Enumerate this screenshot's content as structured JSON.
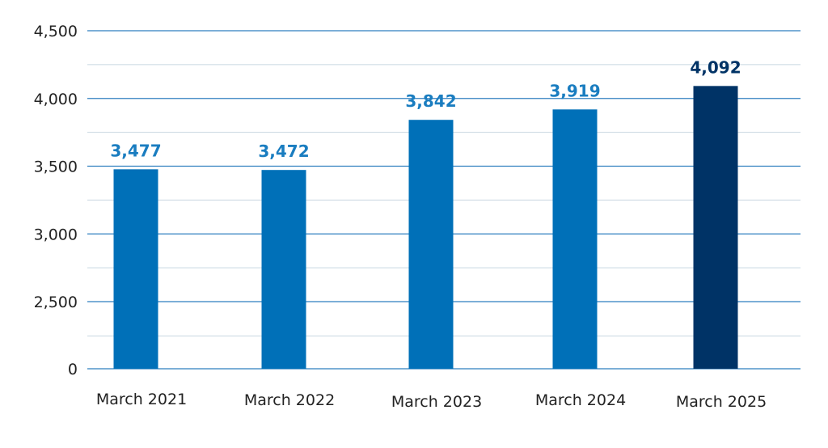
{
  "chart_data": {
    "type": "bar",
    "categories": [
      "March 2021",
      "March 2022",
      "March 2023",
      "March 2024",
      "March 2025"
    ],
    "values": [
      3477,
      3472,
      3842,
      3919,
      4092
    ],
    "data_labels": [
      "3,477",
      "3,472",
      "3,842",
      "3,919",
      "4,092"
    ],
    "y_ticks": [
      {
        "label": "0",
        "value": 0
      },
      {
        "label": "2,500",
        "value": 2500
      },
      {
        "label": "3,000",
        "value": 3000
      },
      {
        "label": "3,500",
        "value": 3500
      },
      {
        "label": "4,000",
        "value": 4000
      },
      {
        "label": "4,500",
        "value": 4500
      }
    ],
    "axis_break": "broken y-axis between 0 and 2,500",
    "grid": true,
    "colors": {
      "bar": "#0070b8",
      "highlight_bar": "#003366",
      "label": "#1a7dc0",
      "highlight_label": "#003366",
      "major_grid": "#2f7fbf",
      "minor_grid": "#c8d6e0"
    },
    "highlight_index": 4,
    "title": "",
    "xlabel": "",
    "ylabel": ""
  }
}
